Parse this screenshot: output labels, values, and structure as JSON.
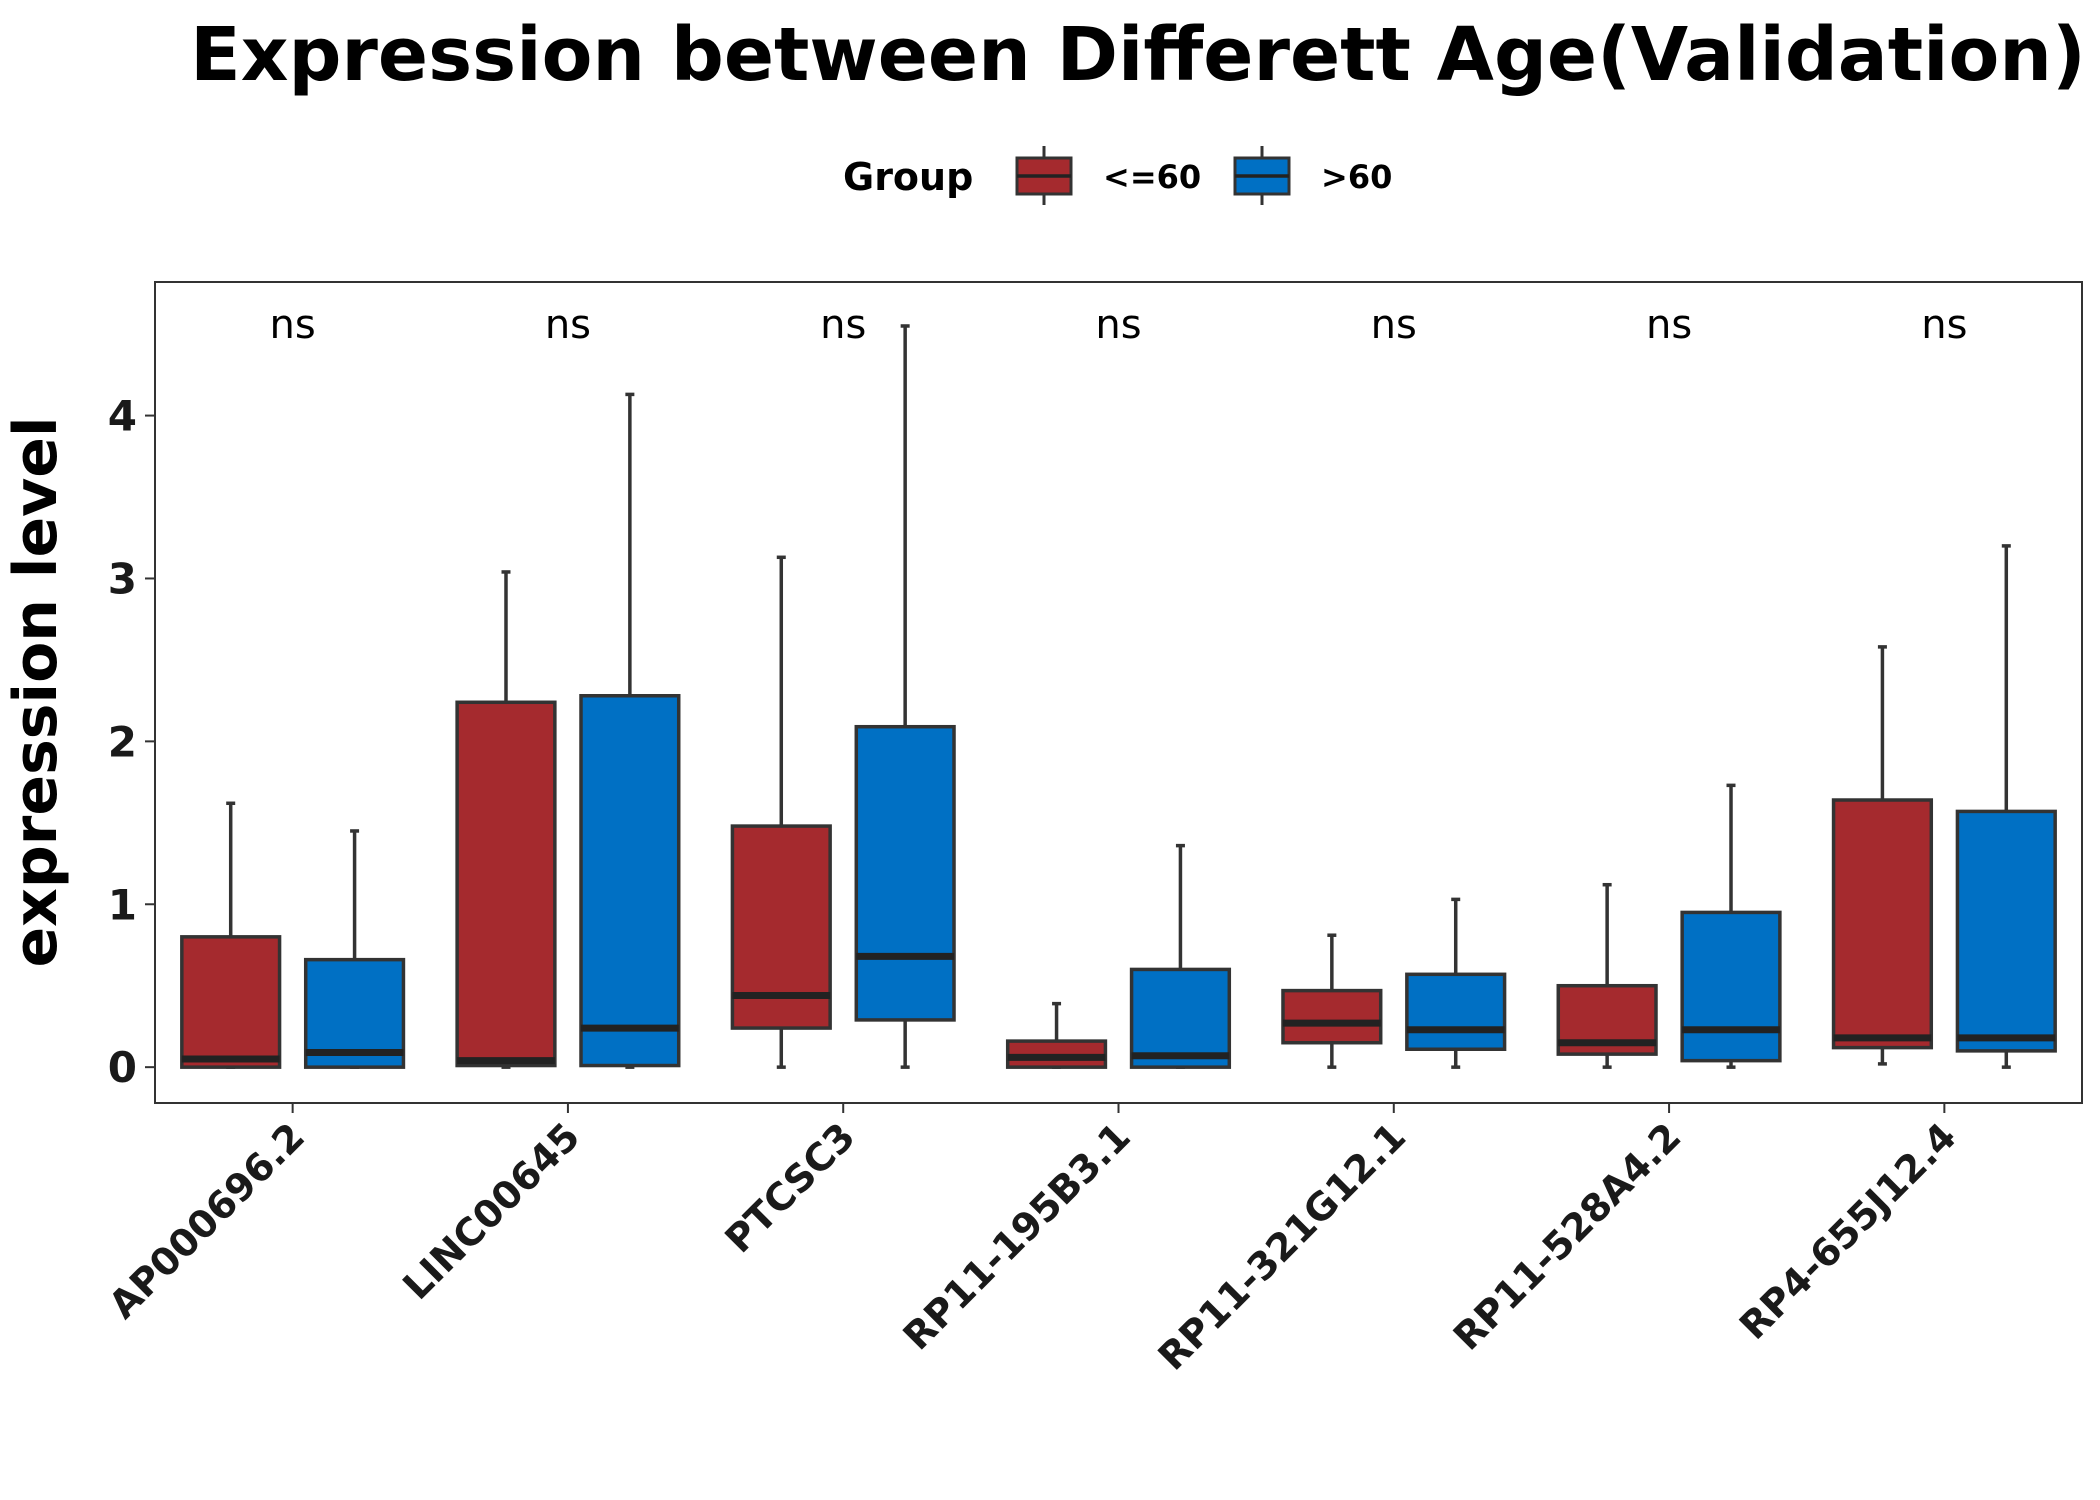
{
  "chart_data": {
    "type": "box",
    "title": "Expression between Differett Age(Validation)",
    "xlabel": "",
    "ylabel": "expression level",
    "ylim": [
      -0.22,
      4.82
    ],
    "yticks": [
      0,
      1,
      2,
      3,
      4
    ],
    "grid": false,
    "legend": {
      "title": "Group",
      "position": "top",
      "entries": [
        {
          "name": "<=60",
          "color": "#A52A2E"
        },
        {
          "name": ">60",
          "color": "#0070C4"
        }
      ]
    },
    "categories": [
      "AP000696.2",
      "LINC00645",
      "PTCSC3",
      "RP11-195B3.1",
      "RP11-321G12.1",
      "RP11-528A4.2",
      "RP4-655J12.4"
    ],
    "significance": [
      "ns",
      "ns",
      "ns",
      "ns",
      "ns",
      "ns",
      "ns"
    ],
    "series": [
      {
        "name": "<=60",
        "color": "#A52A2E",
        "boxes": [
          {
            "min": 0.0,
            "q1": 0.0,
            "median": 0.05,
            "q3": 0.8,
            "max": 1.62
          },
          {
            "min": 0.0,
            "q1": 0.01,
            "median": 0.04,
            "q3": 2.24,
            "max": 3.04
          },
          {
            "min": 0.0,
            "q1": 0.24,
            "median": 0.44,
            "q3": 1.48,
            "max": 3.13
          },
          {
            "min": 0.0,
            "q1": 0.0,
            "median": 0.06,
            "q3": 0.16,
            "max": 0.39
          },
          {
            "min": 0.0,
            "q1": 0.15,
            "median": 0.27,
            "q3": 0.47,
            "max": 0.81
          },
          {
            "min": 0.0,
            "q1": 0.08,
            "median": 0.15,
            "q3": 0.5,
            "max": 1.12
          },
          {
            "min": 0.02,
            "q1": 0.12,
            "median": 0.18,
            "q3": 1.64,
            "max": 2.58
          }
        ]
      },
      {
        "name": ">60",
        "color": "#0070C4",
        "boxes": [
          {
            "min": 0.0,
            "q1": 0.0,
            "median": 0.09,
            "q3": 0.66,
            "max": 1.45
          },
          {
            "min": 0.0,
            "q1": 0.01,
            "median": 0.24,
            "q3": 2.28,
            "max": 4.13
          },
          {
            "min": 0.0,
            "q1": 0.29,
            "median": 0.68,
            "q3": 2.09,
            "max": 4.55
          },
          {
            "min": 0.0,
            "q1": 0.0,
            "median": 0.07,
            "q3": 0.6,
            "max": 1.36
          },
          {
            "min": 0.0,
            "q1": 0.11,
            "median": 0.23,
            "q3": 0.57,
            "max": 1.03
          },
          {
            "min": 0.0,
            "q1": 0.04,
            "median": 0.23,
            "q3": 0.95,
            "max": 1.73
          },
          {
            "min": 0.0,
            "q1": 0.1,
            "median": 0.18,
            "q3": 1.57,
            "max": 3.2
          }
        ]
      }
    ]
  }
}
